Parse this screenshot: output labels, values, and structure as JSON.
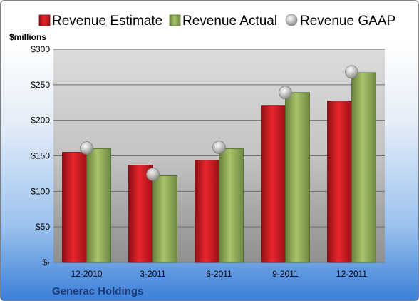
{
  "chart_data": {
    "type": "bar",
    "ylabel": "$millions",
    "ylim": [
      0,
      300
    ],
    "yticks": [
      {
        "value": 0,
        "label": "$-"
      },
      {
        "value": 50,
        "label": "$50"
      },
      {
        "value": 100,
        "label": "$100"
      },
      {
        "value": 150,
        "label": "$150"
      },
      {
        "value": 200,
        "label": "$200"
      },
      {
        "value": 250,
        "label": "$250"
      },
      {
        "value": 300,
        "label": "$300"
      }
    ],
    "categories": [
      "12-2010",
      "3-2011",
      "6-2011",
      "9-2011",
      "12-2011"
    ],
    "series": [
      {
        "name": "Revenue Estimate",
        "marker": "bar",
        "values": [
          155,
          137,
          144,
          221,
          227
        ]
      },
      {
        "name": "Revenue Actual",
        "marker": "bar",
        "values": [
          160,
          122,
          160,
          239,
          267
        ]
      },
      {
        "name": "Revenue GAAP",
        "marker": "circle",
        "values": [
          161,
          124,
          162,
          239,
          268
        ]
      }
    ],
    "grid": true,
    "legend": "top",
    "colors": {
      "estimate": "#c0161c",
      "actual": "#8aa84a",
      "gaap": "#b8b8b8"
    }
  },
  "company": "Generac Holdings"
}
